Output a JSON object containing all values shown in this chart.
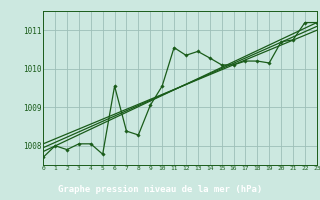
{
  "title": "Graphe pression niveau de la mer (hPa)",
  "bg_color": "#cce8e0",
  "plot_bg_color": "#cce8e0",
  "label_bg_color": "#2d6a2d",
  "label_text_color": "#ffffff",
  "line_color": "#1a5c1a",
  "grid_color": "#9dbfb8",
  "xlim": [
    0,
    23
  ],
  "ylim": [
    1007.5,
    1011.5
  ],
  "yticks": [
    1008,
    1009,
    1010,
    1011
  ],
  "xticks": [
    0,
    1,
    2,
    3,
    4,
    5,
    6,
    7,
    8,
    9,
    10,
    11,
    12,
    13,
    14,
    15,
    16,
    17,
    18,
    19,
    20,
    21,
    22,
    23
  ],
  "main_x": [
    0,
    1,
    2,
    3,
    4,
    5,
    6,
    7,
    8,
    9,
    10,
    11,
    12,
    13,
    14,
    15,
    16,
    17,
    18,
    19,
    20,
    21,
    22,
    23
  ],
  "main_y": [
    1007.7,
    1008.0,
    1007.9,
    1008.05,
    1008.05,
    1007.78,
    1009.55,
    1008.38,
    1008.28,
    1009.05,
    1009.55,
    1010.55,
    1010.35,
    1010.45,
    1010.28,
    1010.1,
    1010.1,
    1010.2,
    1010.2,
    1010.15,
    1010.7,
    1010.75,
    1011.2,
    1011.2
  ],
  "line1_x": [
    0,
    23
  ],
  "line1_y": [
    1007.85,
    1011.2
  ],
  "line2_x": [
    0,
    23
  ],
  "line2_y": [
    1007.95,
    1011.1
  ],
  "line3_x": [
    0,
    23
  ],
  "line3_y": [
    1008.05,
    1011.0
  ]
}
